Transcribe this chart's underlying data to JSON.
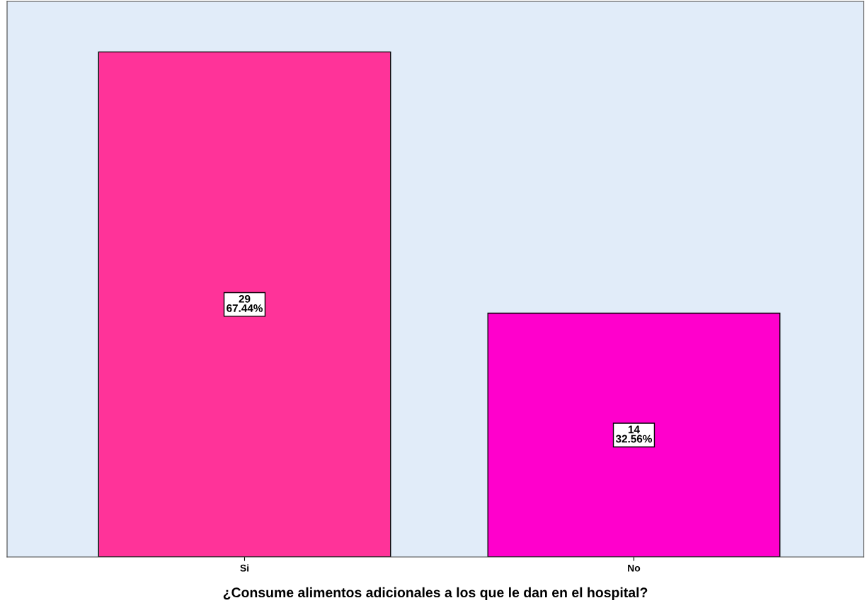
{
  "chart_data": {
    "type": "bar",
    "xlabel": "¿Consume alimentos adicionales a los que le dan en el hospital?",
    "categories": [
      "Si",
      "No"
    ],
    "values": [
      29,
      14
    ],
    "value_labels": [
      "29\n67.44%",
      "14\n32.56%"
    ],
    "colors": [
      "#ff3399",
      "#ff00cc"
    ],
    "ylim": [
      0,
      31.9
    ],
    "tick_labels": "x",
    "grid": false,
    "legend": false
  }
}
